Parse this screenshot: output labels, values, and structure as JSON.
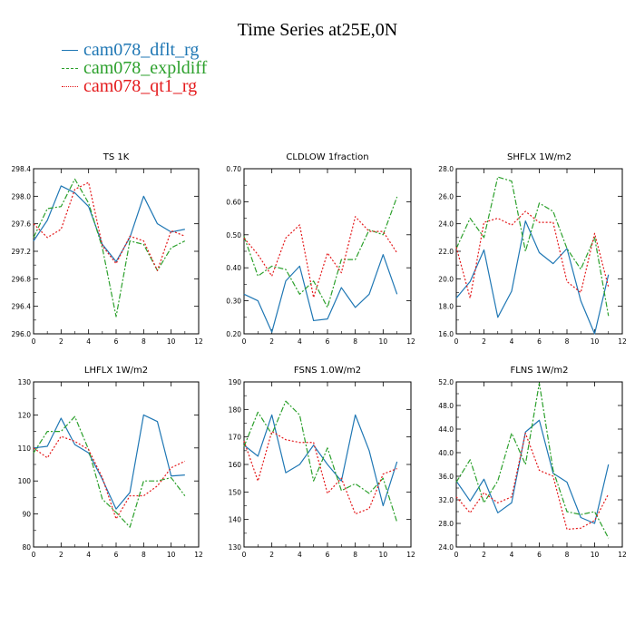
{
  "title": "Time Series at25E,0N",
  "colors": {
    "dflt": "#1f77b4",
    "expldiff": "#2ca02c",
    "qt1": "#e41a1c"
  },
  "legend": [
    {
      "label": "cam078_dflt_rg",
      "color": "#1f77b4",
      "dashed": false
    },
    {
      "label": "cam078_expldiff",
      "color": "#2ca02c",
      "dashed": true
    },
    {
      "label": "cam078_qt1_rg",
      "color": "#e41a1c",
      "dashed": true
    }
  ],
  "chart_data": [
    {
      "type": "line",
      "title": "TS   1K",
      "xlim": [
        0,
        12
      ],
      "xticks": [
        0,
        2,
        4,
        6,
        8,
        10,
        12
      ],
      "ylim": [
        296.0,
        298.4
      ],
      "yticks": [
        "296.0",
        "296.4",
        "296.8",
        "297.2",
        "297.6",
        "298.0",
        "298.4"
      ],
      "x": [
        0,
        1,
        2,
        3,
        4,
        5,
        6,
        7,
        8,
        9,
        10,
        11
      ],
      "series": [
        {
          "name": "cam078_dflt_rg",
          "values": [
            297.35,
            297.65,
            298.15,
            298.05,
            297.85,
            297.3,
            297.05,
            297.4,
            298.0,
            297.6,
            297.48,
            297.52
          ]
        },
        {
          "name": "cam078_expldiff",
          "values": [
            297.4,
            297.82,
            297.85,
            298.25,
            297.9,
            297.25,
            296.25,
            297.35,
            297.3,
            296.92,
            297.25,
            297.35
          ]
        },
        {
          "name": "cam078_qt1_rg",
          "values": [
            297.6,
            297.4,
            297.52,
            298.1,
            298.2,
            297.28,
            297.02,
            297.42,
            297.35,
            296.92,
            297.5,
            297.42
          ]
        }
      ]
    },
    {
      "type": "line",
      "title": "CLDLOW   1fraction",
      "xlim": [
        0,
        12
      ],
      "xticks": [
        0,
        2,
        4,
        6,
        8,
        10,
        12
      ],
      "ylim": [
        0.2,
        0.7
      ],
      "yticks": [
        "0.20",
        "0.30",
        "0.40",
        "0.50",
        "0.60",
        "0.70"
      ],
      "x": [
        0,
        1,
        2,
        3,
        4,
        5,
        6,
        7,
        8,
        9,
        10,
        11
      ],
      "series": [
        {
          "name": "cam078_dflt_rg",
          "values": [
            0.32,
            0.3,
            0.205,
            0.36,
            0.405,
            0.24,
            0.245,
            0.34,
            0.28,
            0.32,
            0.44,
            0.32
          ]
        },
        {
          "name": "cam078_expldiff",
          "values": [
            0.495,
            0.375,
            0.405,
            0.395,
            0.32,
            0.36,
            0.28,
            0.425,
            0.425,
            0.515,
            0.5,
            0.615
          ]
        },
        {
          "name": "cam078_qt1_rg",
          "values": [
            0.49,
            0.44,
            0.375,
            0.49,
            0.53,
            0.31,
            0.445,
            0.385,
            0.555,
            0.51,
            0.51,
            0.445
          ]
        }
      ]
    },
    {
      "type": "line",
      "title": "SHFLX   1W/m2",
      "xlim": [
        0,
        12
      ],
      "xticks": [
        0,
        2,
        4,
        6,
        8,
        10,
        12
      ],
      "ylim": [
        16.0,
        28.0
      ],
      "yticks": [
        "16.0",
        "18.0",
        "20.0",
        "22.0",
        "24.0",
        "26.0",
        "28.0"
      ],
      "x": [
        0,
        1,
        2,
        3,
        4,
        5,
        6,
        7,
        8,
        9,
        10,
        11
      ],
      "series": [
        {
          "name": "cam078_dflt_rg",
          "values": [
            18.6,
            19.8,
            22.1,
            17.2,
            19.1,
            24.2,
            21.9,
            21.1,
            22.2,
            18.4,
            16.0,
            20.3
          ]
        },
        {
          "name": "cam078_expldiff",
          "values": [
            22.2,
            24.4,
            23.0,
            27.4,
            27.1,
            22.0,
            25.5,
            24.9,
            22.2,
            20.7,
            23.0,
            17.3
          ]
        },
        {
          "name": "cam078_qt1_rg",
          "values": [
            22.3,
            18.6,
            24.1,
            24.4,
            23.9,
            24.9,
            24.1,
            24.1,
            19.8,
            19.0,
            23.3,
            19.4
          ]
        }
      ]
    },
    {
      "type": "line",
      "title": "LHFLX   1W/m2",
      "xlim": [
        0,
        12
      ],
      "xticks": [
        0,
        2,
        4,
        6,
        8,
        10,
        12
      ],
      "ylim": [
        80,
        130
      ],
      "yticks": [
        "80",
        "90",
        "100",
        "110",
        "120",
        "130"
      ],
      "x": [
        0,
        1,
        2,
        3,
        4,
        5,
        6,
        7,
        8,
        9,
        10,
        11
      ],
      "series": [
        {
          "name": "cam078_dflt_rg",
          "values": [
            110.0,
            110.5,
            119.0,
            111.0,
            108.5,
            100.5,
            91.5,
            96.5,
            120.0,
            118.0,
            101.5,
            101.8
          ]
        },
        {
          "name": "cam078_expldiff",
          "values": [
            108.5,
            115.0,
            115.0,
            119.5,
            109.5,
            94.5,
            90.5,
            86.0,
            100.0,
            100.0,
            101.0,
            95.5
          ]
        },
        {
          "name": "cam078_qt1_rg",
          "values": [
            110.0,
            107.0,
            113.5,
            112.0,
            109.5,
            101.0,
            88.5,
            95.5,
            95.5,
            98.5,
            104.0,
            106.0
          ]
        }
      ]
    },
    {
      "type": "line",
      "title": "FSNS   1.0W/m2",
      "xlim": [
        0,
        12
      ],
      "xticks": [
        0,
        2,
        4,
        6,
        8,
        10,
        12
      ],
      "ylim": [
        130,
        190
      ],
      "yticks": [
        "130",
        "140",
        "150",
        "160",
        "170",
        "180",
        "190"
      ],
      "x": [
        0,
        1,
        2,
        3,
        4,
        5,
        6,
        7,
        8,
        9,
        10,
        11
      ],
      "series": [
        {
          "name": "cam078_dflt_rg",
          "values": [
            167.0,
            163.0,
            178.0,
            157.0,
            160.0,
            167.0,
            160.0,
            154.0,
            178.0,
            165.0,
            145.0,
            161.0
          ]
        },
        {
          "name": "cam078_expldiff",
          "values": [
            166.5,
            179.0,
            171.0,
            183.0,
            178.0,
            154.0,
            166.0,
            150.5,
            153.0,
            149.5,
            155.0,
            139.0
          ]
        },
        {
          "name": "cam078_qt1_rg",
          "values": [
            168.5,
            154.0,
            172.0,
            169.0,
            168.0,
            168.0,
            149.5,
            155.0,
            142.0,
            144.0,
            156.5,
            158.5
          ]
        }
      ]
    },
    {
      "type": "line",
      "title": "FLNS   1W/m2",
      "xlim": [
        0,
        12
      ],
      "xticks": [
        0,
        2,
        4,
        6,
        8,
        10,
        12
      ],
      "ylim": [
        24.0,
        52.0
      ],
      "yticks": [
        "24.0",
        "28.0",
        "32.0",
        "36.0",
        "40.0",
        "44.0",
        "48.0",
        "52.0"
      ],
      "x": [
        0,
        1,
        2,
        3,
        4,
        5,
        6,
        7,
        8,
        9,
        10,
        11
      ],
      "series": [
        {
          "name": "cam078_dflt_rg",
          "values": [
            35.2,
            31.8,
            35.5,
            29.8,
            31.5,
            43.5,
            45.5,
            36.5,
            35.0,
            29.0,
            28.0,
            38.0
          ]
        },
        {
          "name": "cam078_expldiff",
          "values": [
            35.0,
            38.8,
            31.5,
            35.2,
            43.3,
            38.0,
            51.8,
            37.0,
            30.0,
            29.5,
            30.0,
            25.5
          ]
        },
        {
          "name": "cam078_qt1_rg",
          "values": [
            32.5,
            29.8,
            33.2,
            31.5,
            32.5,
            43.3,
            37.0,
            36.0,
            27.0,
            27.2,
            28.5,
            33.0
          ]
        }
      ]
    }
  ]
}
